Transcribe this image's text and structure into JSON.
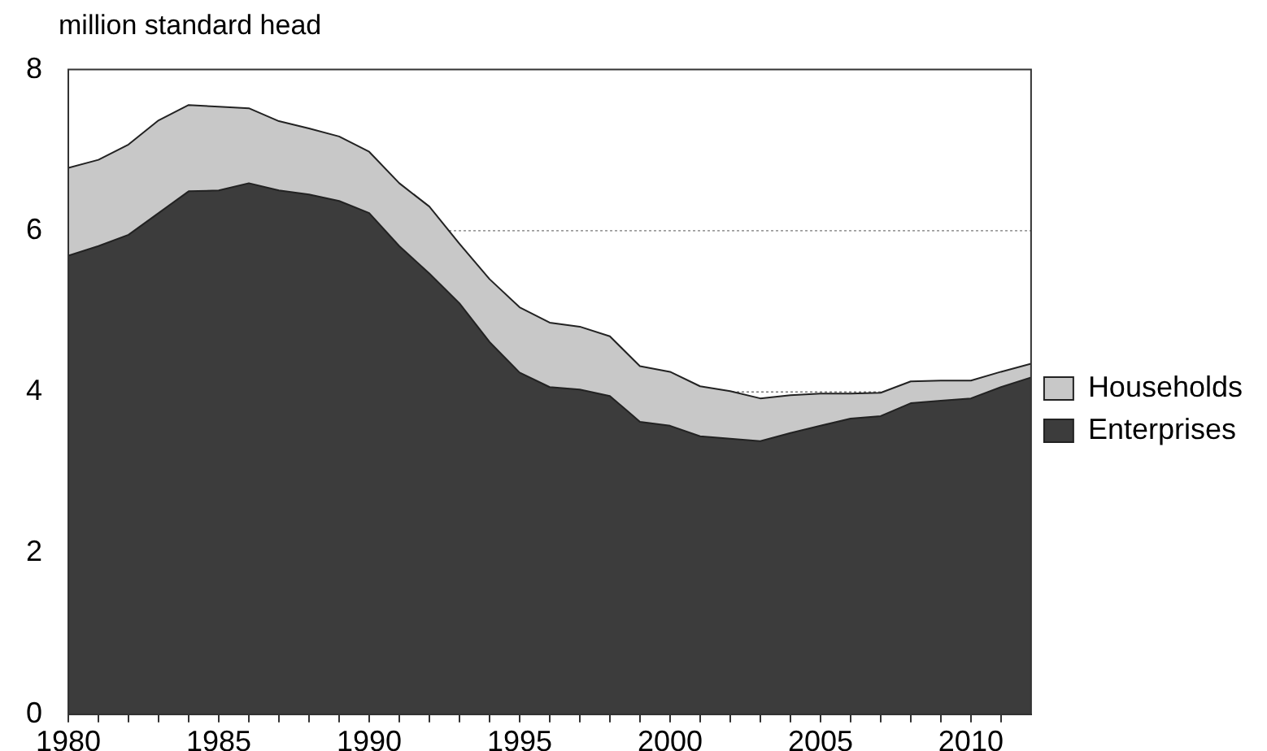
{
  "chart_data": {
    "type": "area",
    "ylabel": "million standard head",
    "stacked": true,
    "x": [
      1980,
      1981,
      1982,
      1983,
      1984,
      1985,
      1986,
      1987,
      1988,
      1989,
      1990,
      1991,
      1992,
      1993,
      1994,
      1995,
      1996,
      1997,
      1998,
      1999,
      2000,
      2001,
      2002,
      2003,
      2004,
      2005,
      2006,
      2007,
      2008,
      2009,
      2010,
      2011,
      2012
    ],
    "series": [
      {
        "name": "Enterprises",
        "color": "#3c3c3c",
        "values": [
          5.69,
          5.81,
          5.95,
          6.22,
          6.49,
          6.5,
          6.59,
          6.5,
          6.45,
          6.37,
          6.22,
          5.81,
          5.47,
          5.1,
          4.62,
          4.24,
          4.06,
          4.03,
          3.95,
          3.63,
          3.58,
          3.45,
          3.42,
          3.39,
          3.49,
          3.58,
          3.67,
          3.7,
          3.86,
          3.89,
          3.92,
          4.06,
          4.18
        ]
      },
      {
        "name": "Households",
        "color": "#c8c8c8",
        "values": [
          1.09,
          1.07,
          1.12,
          1.15,
          1.07,
          1.04,
          0.93,
          0.86,
          0.82,
          0.8,
          0.76,
          0.78,
          0.83,
          0.74,
          0.78,
          0.81,
          0.8,
          0.78,
          0.74,
          0.69,
          0.67,
          0.62,
          0.59,
          0.53,
          0.47,
          0.4,
          0.31,
          0.29,
          0.27,
          0.25,
          0.22,
          0.19,
          0.17
        ]
      }
    ],
    "xlim": [
      1980,
      2012
    ],
    "xticks": [
      1980,
      {
        "value": 1981,
        "label": null
      },
      {
        "value": 1982,
        "label": null
      },
      {
        "value": 1983,
        "label": null
      },
      {
        "value": 1984,
        "label": null
      },
      1985,
      {
        "value": 1986,
        "label": null
      },
      {
        "value": 1987,
        "label": null
      },
      {
        "value": 1988,
        "label": null
      },
      {
        "value": 1989,
        "label": null
      },
      1990,
      {
        "value": 1991,
        "label": null
      },
      {
        "value": 1992,
        "label": null
      },
      {
        "value": 1993,
        "label": null
      },
      {
        "value": 1994,
        "label": null
      },
      1995,
      {
        "value": 1996,
        "label": null
      },
      {
        "value": 1997,
        "label": null
      },
      {
        "value": 1998,
        "label": null
      },
      {
        "value": 1999,
        "label": null
      },
      2000,
      {
        "value": 2001,
        "label": null
      },
      {
        "value": 2002,
        "label": null
      },
      {
        "value": 2003,
        "label": null
      },
      {
        "value": 2004,
        "label": null
      },
      2005,
      {
        "value": 2006,
        "label": null
      },
      {
        "value": 2007,
        "label": null
      },
      {
        "value": 2008,
        "label": null
      },
      {
        "value": 2009,
        "label": null
      },
      2010,
      {
        "value": 2011,
        "label": null
      }
    ],
    "ylim": [
      0,
      8
    ],
    "yticks": [
      0,
      2,
      4,
      6,
      8
    ],
    "grid": "y",
    "legend": "right",
    "marker": "none",
    "line_style": "solid"
  }
}
